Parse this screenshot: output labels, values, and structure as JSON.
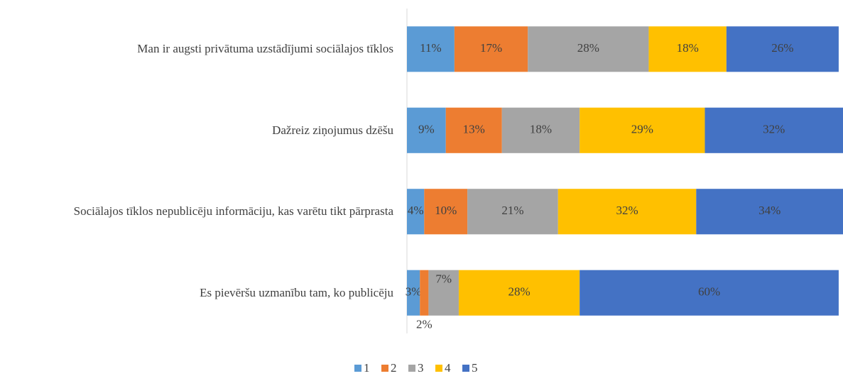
{
  "chart_data": {
    "type": "bar",
    "orientation": "horizontal",
    "stacked": true,
    "categories": [
      "Man ir augsti privātuma uzstādījumi sociālajos tīklos",
      "Dažreiz ziņojumus dzēšu",
      "Sociālajos tīklos nepublicēju informāciju, kas varētu tikt pārprasta",
      "Es pievēršu uzmanību tam, ko publicēju"
    ],
    "series": [
      {
        "name": "1",
        "color": "#5b9bd5",
        "values": [
          11,
          9,
          4,
          3
        ],
        "value_labels": [
          "11%",
          "9%",
          "4%",
          "3%"
        ]
      },
      {
        "name": "2",
        "color": "#ed7d31",
        "values": [
          17,
          13,
          10,
          2
        ],
        "value_labels": [
          "17%",
          "13%",
          "10%",
          "2%"
        ]
      },
      {
        "name": "3",
        "color": "#a5a5a5",
        "values": [
          28,
          18,
          21,
          7
        ],
        "value_labels": [
          "28%",
          "18%",
          "21%",
          "7%"
        ]
      },
      {
        "name": "4",
        "color": "#ffc000",
        "values": [
          18,
          29,
          32,
          28
        ],
        "value_labels": [
          "18%",
          "29%",
          "32%",
          "28%"
        ]
      },
      {
        "name": "5",
        "color": "#4472c4",
        "values": [
          26,
          32,
          34,
          60
        ],
        "value_labels": [
          "26%",
          "32%",
          "34%",
          "60%"
        ]
      }
    ],
    "legend": "bottom"
  }
}
